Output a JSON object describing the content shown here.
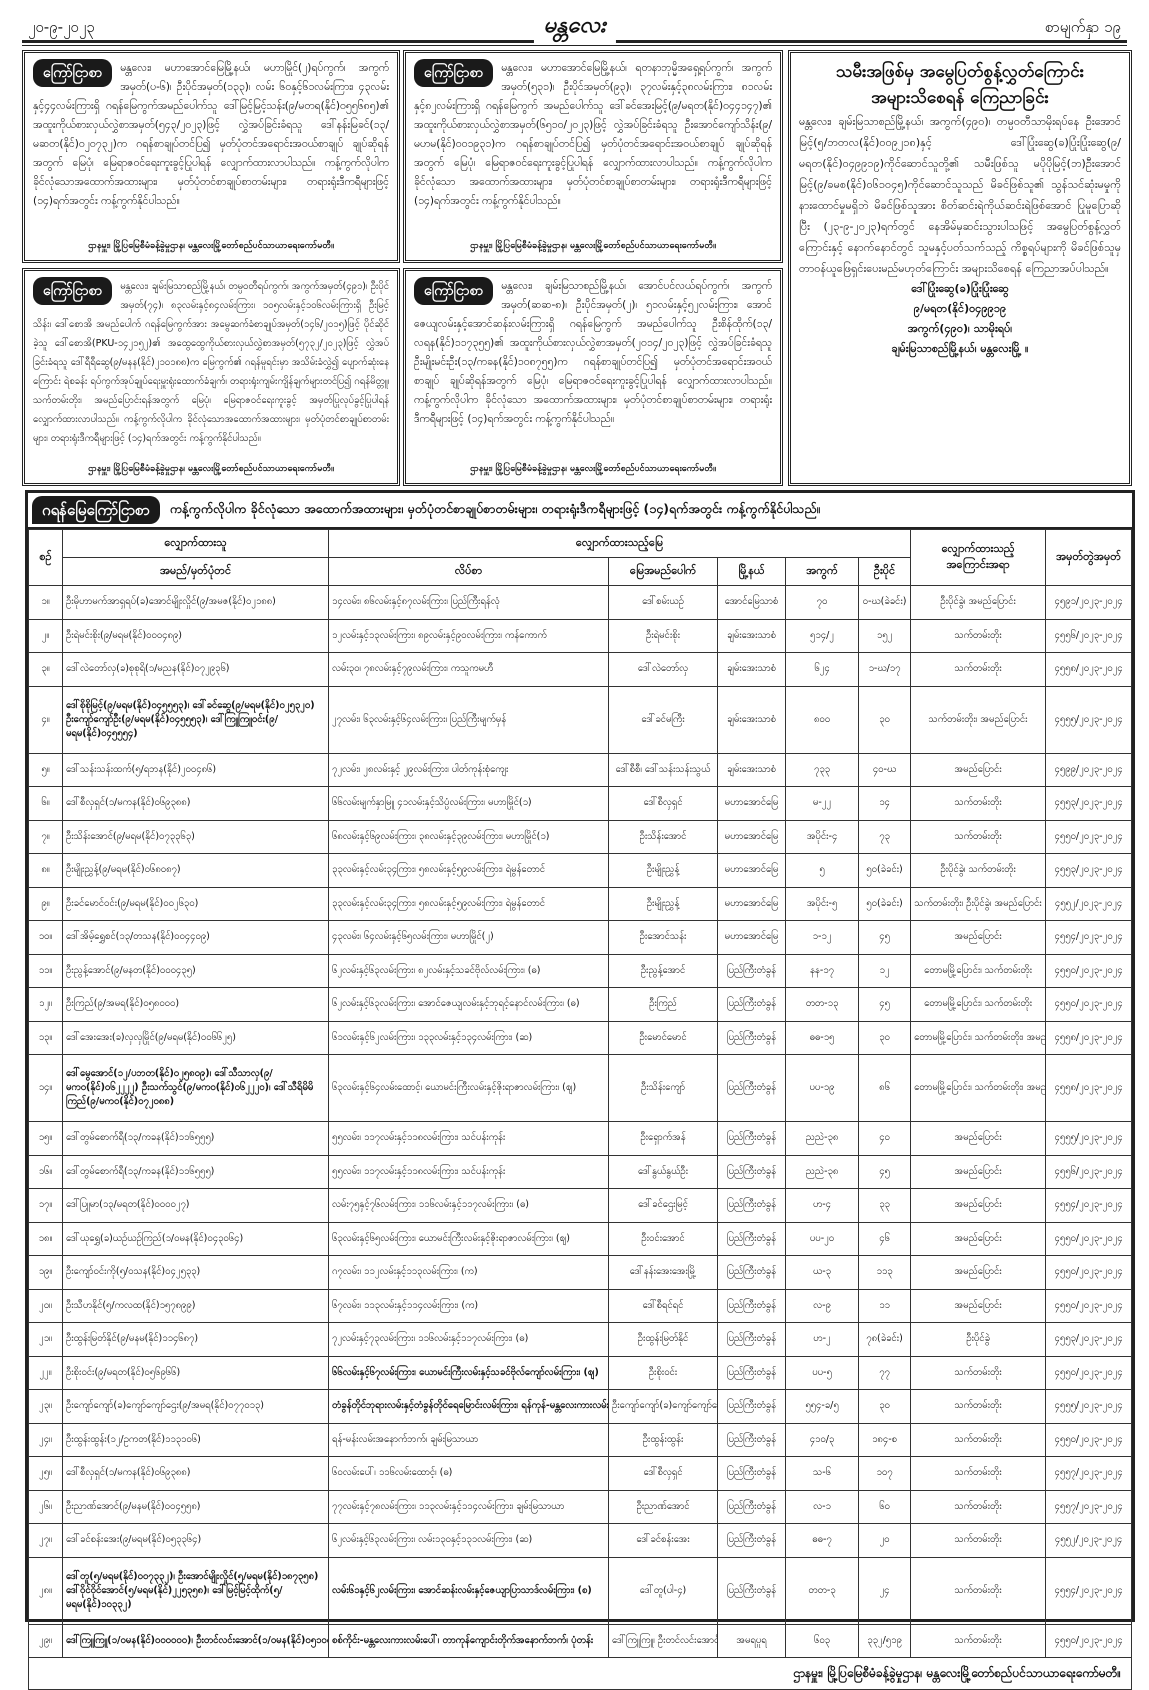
{
  "header": {
    "date": "၂၀-၉-၂၀၂၃",
    "logo": "မန္တလေး",
    "page": "စာမျက်နှာ ၁၉"
  },
  "notices": [
    {
      "badge": "ကြော်ငြာစာ",
      "body": "မန္တလေး၊ မဟာအောင်မြေမြို့နယ်၊ မဟာမြိုင်(၂)ရပ်ကွက်၊ အကွက်အမှတ်(ပ-၆)၊ ဦးပိုင်အမှတ်(၁၃၃)၊ လမ်း ၆၀နှင့်၆၁လမ်းကြား၊ ၄၃လမ်းနှင့်၄၄လမ်းကြားရှိ ဂရန်မြေကွက်အမည်ပေါက်သူ ဒေါ်မြင့်မြင့်သန်း(၉/မတရ(နိုင်)၀၅၅၆၈၅)၏ အထူးကိုယ်စားလှယ်လွှဲစာအမှတ်(၅၄၃/၂၀၂၃)ဖြင့် လွှဲအပ်ခြင်းခံရသူ ဒေါ်နန်းမြခင်(၁၃/မဆတ(နိုင်)၀၂၀၇၃၂)က ဂရန်စာချုပ်တင်ပြ၍ မှတ်ပုံတင်အရောင်းအဝယ်စာချုပ် ချုပ်ဆိုရန်အတွက် မြေပုံ၊ မြေရာဇဝင်ရေးကူးခွင့်ပြုပါရန် လျှောက်ထားလာပါသည်။ ကန့်ကွက်လိုပါက ခိုင်လုံသောအထောက်အထားများ၊ မှတ်ပုံတင်စာချုပ်စာတမ်းများ၊ တရားရုံးဒီကရီများဖြင့် (၁၄)ရက်အတွင်း ကန့်ကွက်နိုင်ပါသည်။",
      "footer": "ဌာနမှူး၊ မြို့ပြမြေစီမံခန့်ခွဲမှုဌာန၊ မန္တလေးမြို့တော်စည်ပင်သာယာရေးကော်မတီ။"
    },
    {
      "badge": "ကြော်ငြာစာ",
      "body": "မန္တလေး၊ မဟာအောင်မြေမြို့နယ်၊ ရတနာဘုမ္မိအရှေ့ရပ်ကွက်၊ အကွက်အမှတ်(၅၃၁)၊ ဦးပိုင်အမှတ်(၉၃)၊ ၃၇လမ်းနှင့်၃၈လမ်းကြား၊ ၈၁လမ်းနှင့်၈၂လမ်းကြားရှိ ဂရန်မြေကွက် အမည်ပေါက်သူ ဒေါ်ခင်အေးမြင့်(၉/မရတ(နိုင်)၀၄၄၁၄၇)၏ အထူးကိုယ်စားလှယ်လွှဲစာအမှတ်(၆၅၁၀/၂၀၂၃)ဖြင့် လွှဲအပ်ခြင်းခံရသူ ဦးအောင်ကျော်သိန်း(၉/မဟမ(နိုင်)၀၀၁၉၃၁)က ဂရန်စာချုပ်တင်ပြ၍ မှတ်ပုံတင်အရောင်းအဝယ်စာချုပ် ချုပ်ဆိုရန်အတွက် မြေပုံ၊ မြေရာဇဝင်ရေးကူးခွင့်ပြုပါရန် လျှောက်ထားလာပါသည်။ ကန့်ကွက်လိုပါက ခိုင်လုံသော အထောက်အထားများ၊ မှတ်ပုံတင်စာချုပ်စာတမ်းများ၊ တရားရုံးဒီကရီများဖြင့် (၁၄)ရက်အတွင်း ကန့်ကွက်နိုင်ပါသည်။",
      "footer": "ဌာနမှူး၊ မြို့ပြမြေစီမံခန့်ခွဲမှုဌာန၊ မန္တလေးမြို့တော်စည်ပင်သာယာရေးကော်မတီ။"
    },
    {
      "badge": "ကြော်ငြာစာ",
      "body": "မန္တလေး၊ ချမ်းမြသာစည်မြို့နယ်၊ တမ္ပဝတီရပ်ကွက်၊ အကွက်အမှတ်(၄၉၁)၊ ဦးပိုင်အမှတ်(၇၄)၊ ၈၃လမ်းနှင့်၈၄လမ်းကြား၊ ၁၀၅လမ်းနှင့်၁၀၆လမ်းကြားရှိ ဦးမြင့်သိန်း၊ ဒေါ်စောအိ အမည်ပေါက် ဂရန်မြေကွက်အား အမွေဆက်ခံစာချုပ်အမှတ်(၁၄၆/၂၀၁၅)ဖြင့် ပိုင်ဆိုင်ခဲ့သူ ဒေါ်စောအိ(PKU-၁၄၂၁၅၂)၏ အထွေထွေကိုယ်စားလှယ်လွှဲစာအမှတ်(၅၇၃၂/၂၀၂၃)ဖြင့် လွှဲအပ်ခြင်းခံရသူ ဒေါ်ရီရီဆွေ(၉/မနန(နိုင်)၂၁၀၁၈၈)က မြေကွက်၏ ဂရန်မူရင်းမှာ အသိမ်းခံလွှဲ၍ ပျောက်ဆုံးနေကြောင်း ရဲစခန်း ရပ်ကွက်အုပ်ချုပ်ရေးမှူးရုံးထောက်ခံချက်၊ တရားရုံးကျမ်းကျိန်ချက်များတင်ပြ၍ ဂရန်မိတ္တူ၊ သက်တမ်းတိုး၊ အမည်ပြောင်းရန်အတွက် မြေပုံ၊ မြေရာဇဝင်ရေးကူးခွင့် အမှတ်ပြုလုပ်ခွင့်ပြုပါရန် လျှောက်ထားလာပါသည်။ ကန့်ကွက်လိုပါက ခိုင်လုံသောအထောက်အထားများ၊ မှတ်ပုံတင်စာချုပ်စာတမ်းများ၊ တရားရုံးဒီကရီများဖြင့် (၁၄)ရက်အတွင်း ကန့်ကွက်နိုင်ပါသည်။",
      "footer": "ဌာနမှူး၊ မြို့ပြမြေစီမံခန့်ခွဲမှုဌာန၊ မန္တလေးမြို့တော်စည်ပင်သာယာရေးကော်မတီ။"
    },
    {
      "badge": "ကြော်ငြာစာ",
      "body": "မန္တလေး၊ ချမ်းမြသာစည်မြို့နယ်၊ အောင်ပင်လယ်ရပ်ကွက်၊ အကွက်အမှတ်(ဆဆ-၈)၊ ဦးပိုင်အမှတ်(၂)၊ ၅၁လမ်းနှင့်၅၂လမ်းကြား၊ အောင်ဇေယျလမ်းနှင့်အောင်ဆန်းလမ်းကြားရှိ ဂရန်မြေကွက် အမည်ပေါက်သူ ဦးစိန်ထိုက်(၁၃/လရန(နိုင်)၁၁၇၃၅၅)၏ အထူးကိုယ်စားလှယ်လွှဲစာအမှတ်(၂၀၁၄/၂၀၂၃)ဖြင့် လွှဲအပ်ခြင်းခံရသူ ဦးမျိုးမင်းဦး(၁၃/ကခန(နိုင်)၁၀၈၇၅၅)က ဂရန်စာချုပ်တင်ပြ၍ မှတ်ပုံတင်အရောင်းအဝယ်စာချုပ် ချုပ်ဆိုရန်အတွက် မြေပုံ၊ မြေရာဇဝင်ရေးကူးခွင့်ပြုပါရန် လျှောက်ထားလာပါသည်။ ကန့်ကွက်လိုပါက ခိုင်လုံသော အထောက်အထားများ၊ မှတ်ပုံတင်စာချုပ်စာတမ်းများ၊ တရားရုံးဒီကရီများဖြင့် (၁၄)ရက်အတွင်း ကန့်ကွက်နိုင်ပါသည်။",
      "footer": "ဌာနမှူး၊ မြို့ပြမြေစီမံခန့်ခွဲမှုဌာန၊ မန္တလေးမြို့တော်စည်ပင်သာယာရေးကော်မတီ။"
    }
  ],
  "right_notice": {
    "title_1": "သမီးအဖြစ်မှ အမွေပြတ်စွန့်လွှတ်ကြောင်း",
    "title_2": "အများသိစေရန် ကြေညာခြင်း",
    "body": "မန္တလေး၊ ချမ်းမြသာစည်မြို့နယ်၊ အကွက်(၄၉၀)၊ တမ္ပဝတီသာမိုးရပ်နေ ဦးအောင်မြင့်(၅/ဘတလ(နိုင်)၀၀၉၂၁၈)နှင့် ဒေါ်ပြုံးဆွေ(ခ)ပြုံးပြုံးဆွေ(၉/မရတ(နိုင်)၀၄၉၉၁၉)ကိုင်ဆောင်သူတို့၏ သမီးဖြစ်သူ မပိုပိုမြင့်(ဘ)ဦးအောင်မြင့်(၉/ခမစ(နိုင်)၀၆၁၀၄၅)ကိုင်ဆောင်သူသည် မိခင်ဖြစ်သူ၏ သွန်သင်ဆုံးမမှုကို နားထောင်မှုမရှိဘဲ မိခင်ဖြစ်သူအား စိတ်ဆင်းရဲကိုယ်ဆင်းရဲဖြစ်အောင် ပြုမူပြောဆိုပြီး (၂၃-၉-၂၀၂၃)ရက်တွင် နေအိမ်မှဆင်းသွားပါသဖြင့် အမွေပြတ်စွန့်လွှတ်ကြောင်းနှင့် နောက်နောင်တွင် သူမနှင့်ပတ်သက်သည့် ကိစ္စရပ်များကို မိခင်ဖြစ်သူမှ တာဝန်ယူဖြေရှင်းပေးမည်မဟုတ်ကြောင်း အများသိစေရန် ကြေညာအပ်ပါသည်။",
    "sign": [
      "ဒေါ်ပြုံးဆွေ(ခ)ပြုံးပြုံးဆွေ",
      "၉/မရတ(နိုင်)၀၄၉၉၁၉",
      "အကွက်(၄၉၀)၊ သာမိုးရပ်၊",
      "ချမ်းမြသာစည်မြို့နယ်၊ မန္တလေးမြို့ ။"
    ]
  },
  "grant_section": {
    "badge": "ဂရန်မြေကြော်ငြာစာ",
    "intro": "ကန့်ကွက်လိုပါက ခိုင်လုံသော အထောက်အထားများ၊ မှတ်ပုံတင်စာချုပ်စာတမ်းများ၊ တရားရုံးဒီကရီများဖြင့် (၁၄)ရက်အတွင်း ကန့်ကွက်နိုင်ပါသည်။",
    "headers": {
      "no": "စဉ်",
      "applicant": "လျှောက်ထားသူ",
      "land": "လျှောက်ထားသည့်မြေ",
      "reason_top": "လျှောက်ထားသည့်",
      "reason": "အကြောင်းအရာ",
      "regno": "အမှတ်တွဲအမှတ်",
      "name": "အမည်/မှတ်ပုံတင်",
      "address": "လိပ်စာ",
      "owner": "မြေအမည်ပေါက်",
      "township": "မြို့နယ်",
      "block": "အကွက်",
      "plot": "ဦးပိုင်"
    },
    "rows": [
      [
        "၁။",
        "ဦးမိုဟာမက်အာရှရပ်(ခ)အောင်မျိုးလှိုင်(၉/အမဇ(နိုင်)၀၂၁၈၈)",
        "၁၄လမ်း၊ ၈၆လမ်းနှင့်၈၇လမ်းကြား၊ ပြည်ကြီးရန်လုံ",
        "ဒေါ်စမ်းယဉ်",
        "အောင်မြေသာစံ",
        "၇၀",
        "၀-ဃ(ခဲခင်း)",
        "ဦးပိုင်ခွဲ၊ အမည်ပြောင်း",
        "၄၅၉၁/၂၀၂၃-၂၀၂၄"
      ],
      [
        "၂။",
        "ဦးရဲမင်းစိုး(၉/မရမ(နိုင်)၀၀၀၄၈၉)",
        "၁၂လမ်းနှင့်၁၃လမ်းကြား၊ ၈၉လမ်းနှင့်၉၀လမ်းကြား၊ ကန်ကောက်",
        "ဦးရဲမင်းစိုး",
        "ချမ်းအေးသာစံ",
        "၅၁၄/၂",
        "၁၅၂",
        "သက်တမ်းတိုး",
        "၄၅၅၆/၂၀၂၃-၂၀၂၄"
      ],
      [
        "၃။",
        "ဒေါ်လဲတော်လှ(ခ)စုစုရိ(၁/မညန(နိုင်)၀၇၂၉၃၆)",
        "လမ်း၃၀၊ ၇၈လမ်းနှင့်၇၉လမ်းကြား၊ ကသူကမဟီ",
        "ဒေါ်လဲတော်လှ",
        "ချမ်းအေးသာစံ",
        "၆၂၄",
        "၁-ဃ/၁၇",
        "သက်တမ်းတိုး",
        "၄၅၅၈/၂၀၂၃-၂၀၂၄"
      ],
      [
        "၄။",
        "ဒေါ်စိုစိုမြင့်(၉/မရမ(နိုင်)၀၄၅၅၅၃)၊ ဒေါ်ခင်ဆွေ(၉/မရမ(နိုင်)၀၂၅၃၂၀) ဦးကျော်ကျော်ဦး(၉/မရမ(နိုင်)၀၄၅၅၅၃)၊ ဒေါ်ကြူကြူဝင်း(၉/မရမ(နိုင်)၀၄၅၅၅၄)",
        "၂၇လမ်း၊ ၆၃လမ်းနှင့်၆၄လမ်းကြား၊ ပြည်ကြီးမျက်မှန်",
        "ဒေါ်ခင်မကြီး",
        "ချမ်းအေးသာစံ",
        "၈၀၀",
        "၃၀",
        "သက်တမ်းတိုး၊ အမည်ပြောင်း",
        "၄၅၅၅/၂၀၂၃-၂၀၂၄"
      ],
      [
        "၅။",
        "ဒေါ်သန်းသန်းထက်(၅/ရဘန(နိုင်)၂၀၀၄၈၆)",
        "၇၂လမ်း၊ ၂၈လမ်းနှင့် ၂၉လမ်းကြား၊ ပါတ်ကုန်းစုံကျေး",
        "ဒေါ်စီစီ၊ ဒေါ်သန်းသန်းသွယ်",
        "ချမ်းအေးသာစံ",
        "၇၃၃",
        "၄၀-ဃ",
        "အမည်ပြောင်း",
        "၄၅၉၉/၂၀၂၃-၂၀၂၄"
      ],
      [
        "၆။",
        "ဒေါ်စီလှရှင်(၁/မကန(နိုင်)၀၆၉၃၈၈)",
        "၆၆လမ်းမျက်နှာမြူ ၄၁လမ်းနှင့်သိပ္ပံလမ်းကြား၊ မဟာမြိုင်(၁)",
        "ဒေါ်စီလှရှင်",
        "မဟာအောင်မြေ",
        "မ-၂၂",
        "၁၄",
        "သက်တမ်းတိုး",
        "၄၅၅၃/၂၀၂၃-၂၀၂၄"
      ],
      [
        "၇။",
        "ဦးသိန်းအောင်(၉/မရမ(နိုင်)၀၇၃၃၆၃)",
        "၆၈လမ်းနှင့်၆၉လမ်းကြား၊ ၃၈လမ်းနှင့်၃၉လမ်းကြား၊ မဟာမြိုင်(၁)",
        "ဦးသိန်းအောင်",
        "မဟာအောင်မြေ",
        "အပိုင်း-၄",
        "၇၃",
        "သက်တမ်းတိုး",
        "၄၅၅၀/၂၀၂၃-၂၀၂၄"
      ],
      [
        "၈။",
        "ဦးမျိုးညွှန့်(၉/မရမ(နိုင်)၀၆၈၀၈၇)",
        "၃၃လမ်းနှင့်လမ်း၃၄ကြား၊ ၅၈လမ်းနှင့်၅၉လမ်းကြား၊ ရဲမွန်တောင်",
        "ဦးမျိုးညွှန့်",
        "မဟာအောင်မြေ",
        "၅",
        "၅၀(ခဲခင်း)",
        "ဦးပိုင်ခွဲ၊ သက်တမ်းတိုး",
        "၄၅၅၃/၂၀၂၃-၂၀၂၄"
      ],
      [
        "၉။",
        "ဦးခင်မောင်ဝင်း(၉/မရမ(နိုင်)၀၀၂၆၃၀)",
        "၃၃လမ်းနှင့်လမ်း၃၄ကြား၊ ၅၈လမ်းနှင့်၅၉လမ်းကြား၊ ရဲမွန်တောင်",
        "ဦးမျိုးညွှန့်",
        "မဟာအောင်မြေ",
        "အပိုင်း-၅",
        "၅၀(ခဲခင်း)",
        "သက်တမ်းတိုး၊ ဦးပိုင်ခွဲ၊ အမည်ပြောင်း",
        "၄၅၅၂/၂၀၂၃-၂၀၂၄"
      ],
      [
        "၁၀။",
        "ဒေါ်အိမ့်ရွှေစင်(၁၃/တသန(နိုင်)၀၀၄၄၀၉)",
        "၄၃လမ်း၊ ၆၄လမ်းနှင့်၆၅လမ်းကြား၊ မဟာမြိုင်(၂)",
        "ဦးအောင်သန်း",
        "မဟာအောင်မြေ",
        "၁-၁၂",
        "၄၅",
        "အမည်ပြောင်း",
        "၄၅၅၄/၂၀၂၃-၂၀၂၄"
      ],
      [
        "၁၁။",
        "ဦးညွန့်အောင်(၉/မနတ(နိုင်)၀၀၀၄၃၅)",
        "၆၂လမ်းနှင့်၆၃လမ်းကြား၊ ၈၂လမ်းနှင့်သခင်ဗိုလ်လမ်းကြား၊ (ဓ)",
        "ဦးညွန့်အောင်",
        "ပြည်ကြီးတံခွန်",
        "နန-၁၇",
        "၁၂",
        "တောမမြို့ပြောင်း၊ သက်တမ်းတိုး",
        "၄၅၅၀/၂၀၂၃-၂၀၂၄"
      ],
      [
        "၁၂။",
        "ဦးကြည်(၉/အမရ(နိုင်)၀၅၈၀၀၀)",
        "၆၂လမ်းနှင့်၆၃လမ်းကြား၊ အောင်ဇေယျလမ်းနှင့်ဘုရင့်နောင်လမ်းကြား၊ (ဓ)",
        "ဦးကြည်",
        "ပြည်ကြီးတံခွန်",
        "တတ-၁၃",
        "၄၅",
        "တောမမြို့ပြောင်း၊ သက်တမ်းတိုး",
        "၄၅၅၀/၂၀၂၃-၂၀၂၄"
      ],
      [
        "၁၃။",
        "ဒေါ်အေးအေး(ခ)လှလှမြိုင်(၉/မရမ(နိုင်)၀၀၆၆၂၅)",
        "၆၁လမ်းနှင့်၆၂လမ်းကြား၊ ၁၃၃လမ်းနှင့်၁၃၄လမ်းကြား၊ (ဆ)",
        "ဦးမောင်မောင်",
        "ပြည်ကြီးတံခွန်",
        "ဓဓ-၁၅",
        "၃၀",
        "တောမမြို့ပြောင်း၊ သက်တမ်းတိုး၊ အမည်ပြောင်း",
        "၄၅၅၈/၂၀၂၃-၂၀၂၄"
      ],
      [
        "၁၄။",
        "ဒေါ်မွေအောင်(၁၂/ပဘတ(နိုင်)၀၂၅၈၀၉)၊ ဒေါ်သီသာလှ(၉/မကဝ(နိုင်)၀၆၂၂၂၂) ဦးသက်သွင်(၉/မကဝ(နိုင်)၀၆၂၂၂၀)၊ ဒေါ်သီရိမိမိကြည်(၉/မကဝ(နိုင်)၀၇၂၀၈၈)",
        "၆၃လမ်းနှင့်၆၄လမ်းထောင့်၊ ယောမင်းကြီးလမ်းနှင့်ဇိုးရာဇာလမ်းကြား၊ (ဈ)",
        "ဦးသိန်းကျော်",
        "ပြည်ကြီးတံခွန်",
        "ပပ-၁၉",
        "၈၆",
        "တောမမြို့ပြောင်း၊ သက်တမ်းတိုး၊ အမည်ပြောင်း",
        "၄၅၅၈/၂၀၂၃-၂၀၂၄"
      ],
      [
        "၁၅။",
        "ဒေါ်တွမ်စောက်ရီ(၁၃/ကခန(နိုင်)၁၁၆၅၅၅)",
        "၅၅လမ်း၊ ၁၁၇လမ်းနှင့်၁၁၈လမ်းကြား၊ သင်ပန်းကုန်း",
        "ဦးရှောက်အန်",
        "ပြည်ကြီးတံခွန်",
        "ညညဲ-၃၈",
        "၄၀",
        "အမည်ပြောင်း",
        "၄၅၅၅/၂၀၂၃-၂၀၂၄"
      ],
      [
        "၁၆။",
        "ဒေါ်တွမ်စောက်ရီ(၁၃/ကခန(နိုင်)၁၁၆၅၅၅)",
        "၅၅လမ်း၊ ၁၁၇လမ်းနှင့်၁၁၈လမ်းကြား၊ သင်ပန်းကုန်း",
        "ဒေါ်နွယ်နွယ်ဦး",
        "ပြည်ကြီးတံခွန်",
        "ညညဲ-၃၈",
        "၄၅",
        "အမည်ပြောင်း",
        "၄၅၅၆/၂၀၂၃-၂၀၂၄"
      ],
      [
        "၁၇။",
        "ဒေါ်ပြူမာ(၁၃/မရတ(နိုင်)၀၀၀၀၂၇)",
        "လမ်း၇၅နှင့်၇၆လမ်းကြား၊ ၁၁၆လမ်းနှင့်၁၁၇လမ်းကြား၊ (ဓ)",
        "ဒေါ်ခင်ဌေးမြင့်",
        "ပြည်ကြီးတံခွန်",
        "ဟ-၄",
        "၃၃",
        "အမည်ပြောင်း",
        "၄၅၅၄/၂၀၂၃-၂၀၂၄"
      ],
      [
        "၁၈။",
        "ဒေါ်ယုရွှေ(ခ)ယဉ်ယဉ်ကြည်(၁/ဝမန(နိုင်)၀၄၃၀၆၄)",
        "၆၃လမ်းနှင့်၆၅လမ်းကြား၊ ယောမင်းကြီးလမ်းနှင့်ဇိုးရာဇာလမ်းကြား၊ (ဈ)",
        "ဦးဝင်းအောင်",
        "ပြည်ကြီးတံခွန်",
        "ပပ-၂၀",
        "၄၆",
        "အမည်ပြောင်း",
        "၄၅၅၀/၂၀၂၃-၂၀၂၄"
      ],
      [
        "၁၉။",
        "ဦးကျော်ဝင်းကို(၅/ဝသန(နိုင်)၀၄၂၅၃၃)",
        "ဂ၇လမ်း၊ ၁၁၂လမ်းနှင့်၁၁၃လမ်းကြား၊ (က)",
        "ဒေါ်နန်းအေးအေးမြို့",
        "ပြည်ကြီးတံခွန်",
        "ယ-၃",
        "၁၁၃",
        "အမည်ပြောင်း",
        "၄၅၅၀/၂၀၂၃-၂၀၂၄"
      ],
      [
        "၂၀။",
        "ဦးသီဟနိုင်(၅/ကလထ(နိုင်)၁၅၇၈၉၉)",
        "၆၇လမ်း၊ ၁၁၃လမ်းနှင့်၁၁၄လမ်းကြား၊ (က)",
        "ဒေါ်စီရင်ရင်",
        "ပြည်ကြီးတံခွန်",
        "လ-၉",
        "၁၁",
        "အမည်ပြောင်း",
        "၄၅၅၀/၂၀၂၃-၂၀၂၄"
      ],
      [
        "၂၁။",
        "ဦးထွန်းမြတ်နိုင်(၉/မနမ(နိုင်)၁၁၄၆၈၇)",
        "၇၂လမ်းနှင့်၇၃လမ်းကြား၊ ၁၁၆လမ်းနှင့်၁၁၇လမ်းကြား၊ (ဓ)",
        "ဦးထွန်းမြတ်နိုင်",
        "ပြည်ကြီးတံခွန်",
        "ဟ-၂",
        "၇၈(ခဲခင်း)",
        "ဦးပိုင်ခွဲ",
        "၄၅၅၃/၂၀၂၃-၂၀၂၄"
      ],
      [
        "၂၂။",
        "ဦးစိုးဝင်း(၉/မရတ(နိုင်)၀၅၆၉၆၆)",
        "၆၆လမ်းနှင့်၆၇လမ်းကြား၊ ယောမင်းကြီးလမ်းနှင့်သခင်ဗိုလ်ကျော်လမ်းကြား၊ (ဈ)",
        "ဦးစိုးဝင်း",
        "ပြည်ကြီးတံခွန်",
        "ပပ-၅",
        "၇၇",
        "သက်တမ်းတိုး",
        "၄၅၅၀/၂၀၂၃-၂၀၂၄"
      ],
      [
        "၂၃။",
        "ဦးကျော်ကျော်(ခ)ကျော်ကျော်ဌေး(၉/အမရ(နိုင်)၀၇၇၀၁၃)",
        "တံခွန်တိုင်ဘုရားလမ်းနှင့်တံခွန်တိုင်ရေမြောင်းလမ်းကြား၊ ရန်ကုန်-မန္တလေးကားလမ်းဟောင်းအနောက်ဘက် တံခွန်တိုင်",
        "ဦးကျော်ကျော်(ခ)ကျော်ကျော်ဌေး",
        "ပြည်ကြီးတံခွန်",
        "၅၅၄-ခ/၅",
        "၃၀",
        "သက်တမ်းတိုး",
        "၄၅၅၅/၂၀၂၃-၂၀၂၄"
      ],
      [
        "၂၄။",
        "ဦးထွန်းထွန်း(၁၂/ဥကတ(နိုင်)၁၁၃၁၀၆)",
        "ရန်-မန်းလမ်းအနောက်ဘက်၊ ချမ်းမြသာယာ",
        "ဦးထွန်းထွန်း",
        "ပြည်ကြီးတံခွန်",
        "၄၁၀/၃",
        "၁၈၄-စ",
        "သက်တမ်းတိုး",
        "၄၅၅၀/၂၀၂၃-၂၀၂၄"
      ],
      [
        "၂၅။",
        "ဒေါ်စီလှရှင်(၁/မကန(နိုင်)၀၆၉၃၈၈)",
        "၆၀လမ်းပေါ်၊ ၁၁၆လမ်းထောင့်၊ (ဓ)",
        "ဒေါ်စီလှရှင်",
        "ပြည်ကြီးတံခွန်",
        "သ-၆",
        "၁၀၇",
        "သက်တမ်းတိုး",
        "၄၅၅၇/၂၀၂၃-၂၀၂၄"
      ],
      [
        "၂၆။",
        "ဦးညာဏ်အောင်(၉/မနမ(နိုင်)၀၀၄၅၅၈)",
        "၇၇လမ်းနှင့်၇၈လမ်းကြား၊ ၁၁၃လမ်းနှင့်၁၁၄လမ်းကြား၊ ချမ်းမြသာယာ",
        "ဦးညာဏ်အောင်",
        "ပြည်ကြီးတံခွန်",
        "လ-၁",
        "၆၀",
        "သက်တမ်းတိုး",
        "၄၅၅၇/၂၀၂၃-၂၀၂၄"
      ],
      [
        "၂၇။",
        "ဒေါ်ခင်စန်းအေး(၉/မရမ(နိုင်)၀၅၃၃၆၄)",
        "၆၂လမ်းနှင့်၆၃လမ်းကြား၊ လမ်း၁၃၀နှင့်၁၃၁လမ်းကြား၊ (ဆ)",
        "ဒေါ်ခင်စန်းအေး",
        "ပြည်ကြီးတံခွန်",
        "ဓဓ-၇",
        "၂၀",
        "သက်တမ်းတိုး",
        "၄၅၅၂/၂၀၂၃-၂၀၂၄"
      ],
      [
        "၂၈။",
        "ဒေါ်တူ(၅/မရမ(နိုင်)၀၀၇၃၃၂)၊ ဦးအောင်မျိုးလှိုင်(၅/မရမ(နိုင်)၁၈၇၃၅၈) ဒေါ်ဝိုင်ဝိုင်အောင်(၅/မရမ(နိုင်)၂၂၅၃၅၈)၊ ဒေါ်မြင့်မြင့်ထိုက်(၅/မရမ(နိုင်)၁၀၃၃၂)",
        "လမ်း၆၁နှင့်၆၂လမ်းကြား၊ အောင်ဆန်းလမ်းနှင့်ဇေယျာပြာသာဒ်လမ်းကြား၊ (စ)",
        "ဒေါ်တူ(ပါ-၄)",
        "ပြည်ကြီးတံခွန်",
        "တတ-၃",
        "၂၄",
        "သက်တမ်းတိုး",
        "၄၅၅၄/၂၀၂၃-၂၀၂၄"
      ],
      [
        "၂၉။",
        "ဒေါ်ကြူကြူ(၁/ဝမန(နိုင်)၀၀၀၀၀၀)၊ ဦးတင်လင်းအောင်(၁/ဝမန(နိုင်)၀၅၁၀၀၆)",
        "စစ်ကိုင်း-မန္တလေးကားလမ်းပေါ်၊ တာကုန်ကျောင်းတိုက်အနောက်ဘက်၊ ပုံတန်း",
        "ဒေါ်ကြူကြူ၊ ဦးတင်လင်းအောင်",
        "အမရပူရ",
        "၆၀၃",
        "၃၃၂/၅၁၉",
        "သက်တမ်းတိုး",
        "၄၅၅၀/၂၀၂၃-၂၀၂၄"
      ]
    ],
    "footer": "ဌာနမှူး၊ မြို့ပြမြေစီမံခန့်ခွဲမှုဌာန၊ မန္တလေးမြို့တော်စည်ပင်သာယာရေးကော်မတီ။"
  }
}
